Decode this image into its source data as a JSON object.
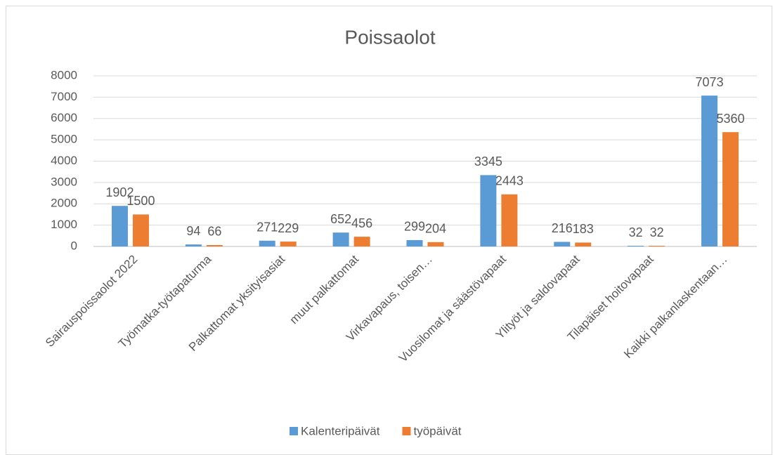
{
  "chart_data": {
    "type": "bar",
    "title": "Poissaolot",
    "categories": [
      "Sairauspoissaolot 2022",
      "Työmatka-työtapaturma",
      "Palkattomat yksityisasiat",
      "muut palkattomat",
      "Virkavapaus, toisen…",
      "Vuosilomat ja säästövapaat",
      "Ylityöt ja saldovapaat",
      "Tilapäiset hoitovapaat",
      "Kaikki palkanlaskentaan…"
    ],
    "series": [
      {
        "name": "Kalenteripäivät",
        "color": "#5b9bd5",
        "values": [
          1902,
          94,
          271,
          652,
          299,
          3345,
          216,
          32,
          7073
        ]
      },
      {
        "name": "työpäivät",
        "color": "#ed7d31",
        "values": [
          1500,
          66,
          229,
          456,
          204,
          2443,
          183,
          32,
          5360
        ]
      }
    ],
    "ylim": [
      0,
      8000
    ],
    "yticks": [
      0,
      1000,
      2000,
      3000,
      4000,
      5000,
      6000,
      7000,
      8000
    ],
    "grid": true,
    "legend": "bottom"
  }
}
